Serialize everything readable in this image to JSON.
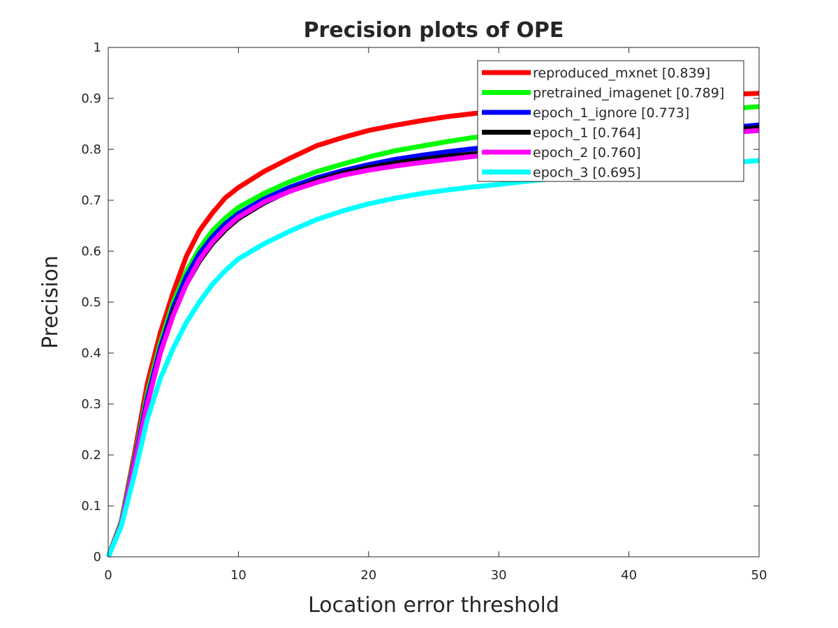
{
  "chart_data": {
    "type": "line",
    "title": "Precision plots of OPE",
    "xlabel": "Location error threshold",
    "ylabel": "Precision",
    "xlim": [
      0,
      50
    ],
    "ylim": [
      0,
      1
    ],
    "x_ticks": [
      "0",
      "10",
      "20",
      "30",
      "40",
      "50"
    ],
    "y_ticks": [
      "0",
      "0.1",
      "0.2",
      "0.3",
      "0.4",
      "0.5",
      "0.6",
      "0.7",
      "0.8",
      "0.9",
      "1"
    ],
    "grid": false,
    "legend_position": "top-right",
    "x": [
      0,
      1,
      2,
      3,
      4,
      5,
      6,
      7,
      8,
      9,
      10,
      12,
      14,
      16,
      18,
      20,
      22,
      24,
      26,
      28,
      30,
      32,
      34,
      36,
      38,
      40,
      42,
      44,
      46,
      48,
      50
    ],
    "series": [
      {
        "name": "reproduced_mxnet [0.839]",
        "color": "#ff0000",
        "values": [
          0.0,
          0.07,
          0.2,
          0.34,
          0.44,
          0.52,
          0.59,
          0.64,
          0.675,
          0.705,
          0.725,
          0.757,
          0.783,
          0.807,
          0.823,
          0.837,
          0.847,
          0.856,
          0.864,
          0.87,
          0.876,
          0.881,
          0.886,
          0.89,
          0.894,
          0.897,
          0.9,
          0.903,
          0.906,
          0.908,
          0.91
        ]
      },
      {
        "name": "pretrained_imagenet [0.789]",
        "color": "#00ff00",
        "values": [
          0.0,
          0.07,
          0.19,
          0.32,
          0.42,
          0.5,
          0.56,
          0.605,
          0.64,
          0.665,
          0.686,
          0.714,
          0.737,
          0.756,
          0.771,
          0.785,
          0.797,
          0.806,
          0.815,
          0.823,
          0.83,
          0.837,
          0.843,
          0.849,
          0.855,
          0.861,
          0.866,
          0.871,
          0.876,
          0.88,
          0.884
        ]
      },
      {
        "name": "epoch_1_ignore [0.773]",
        "color": "#0000ff",
        "values": [
          0.0,
          0.065,
          0.185,
          0.31,
          0.41,
          0.49,
          0.55,
          0.595,
          0.628,
          0.654,
          0.674,
          0.703,
          0.726,
          0.744,
          0.758,
          0.77,
          0.78,
          0.788,
          0.795,
          0.801,
          0.806,
          0.811,
          0.815,
          0.819,
          0.823,
          0.827,
          0.831,
          0.835,
          0.839,
          0.843,
          0.848
        ]
      },
      {
        "name": "epoch_1 [0.764]",
        "color": "#000000",
        "values": [
          0.0,
          0.065,
          0.18,
          0.3,
          0.4,
          0.48,
          0.535,
          0.58,
          0.615,
          0.642,
          0.664,
          0.695,
          0.719,
          0.738,
          0.753,
          0.764,
          0.773,
          0.78,
          0.786,
          0.791,
          0.796,
          0.801,
          0.806,
          0.81,
          0.815,
          0.82,
          0.824,
          0.829,
          0.834,
          0.838,
          0.843
        ]
      },
      {
        "name": "epoch_2 [0.760]",
        "color": "#ff00ff",
        "values": [
          0.0,
          0.065,
          0.18,
          0.3,
          0.4,
          0.475,
          0.535,
          0.583,
          0.618,
          0.645,
          0.667,
          0.697,
          0.718,
          0.735,
          0.749,
          0.759,
          0.767,
          0.774,
          0.78,
          0.786,
          0.791,
          0.796,
          0.801,
          0.806,
          0.81,
          0.815,
          0.82,
          0.825,
          0.829,
          0.833,
          0.837
        ]
      },
      {
        "name": "epoch_3 [0.695]",
        "color": "#00ffff",
        "values": [
          0.0,
          0.06,
          0.16,
          0.27,
          0.35,
          0.41,
          0.46,
          0.5,
          0.535,
          0.562,
          0.585,
          0.615,
          0.64,
          0.662,
          0.679,
          0.693,
          0.704,
          0.713,
          0.72,
          0.726,
          0.731,
          0.737,
          0.742,
          0.747,
          0.752,
          0.757,
          0.762,
          0.766,
          0.77,
          0.774,
          0.778
        ]
      }
    ]
  }
}
